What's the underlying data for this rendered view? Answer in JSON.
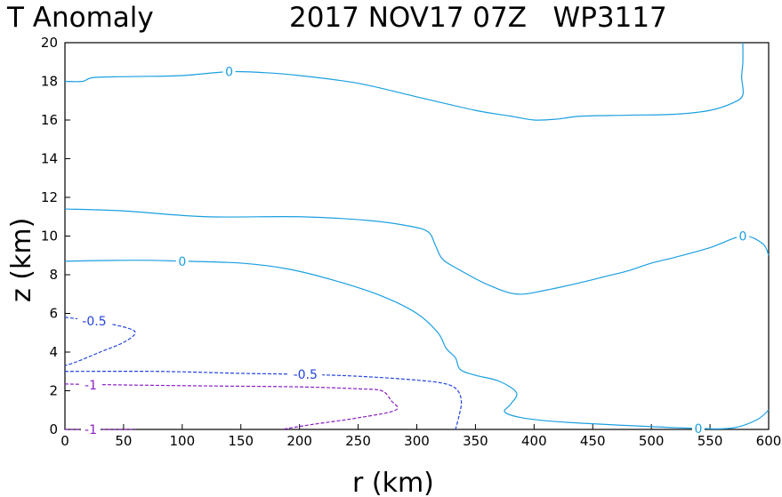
{
  "chart_data": {
    "type": "contour",
    "title_left": "T Anomaly",
    "title_right": "2017 NOV17 07Z   WP3117",
    "xlabel": "r (km)",
    "ylabel": "z (km)",
    "xlim": [
      0,
      600
    ],
    "ylim": [
      0,
      20
    ],
    "xticks": [
      "0",
      "50",
      "100",
      "150",
      "200",
      "250",
      "300",
      "350",
      "400",
      "450",
      "500",
      "550",
      "600"
    ],
    "yticks": [
      "0",
      "2",
      "4",
      "6",
      "8",
      "10",
      "12",
      "14",
      "16",
      "18",
      "20"
    ],
    "colors": {
      "zero": "#1a9fe0",
      "neg05": "#2244dd",
      "neg1": "#8b1fc4"
    },
    "contours": [
      {
        "level": "0",
        "name": "contour-0-upper",
        "color": "zero",
        "dash": false,
        "points": [
          [
            0,
            18.0
          ],
          [
            15,
            18.0
          ],
          [
            25,
            18.2
          ],
          [
            60,
            18.25
          ],
          [
            100,
            18.3
          ],
          [
            140,
            18.5
          ],
          [
            170,
            18.45
          ],
          [
            200,
            18.3
          ],
          [
            250,
            17.9
          ],
          [
            300,
            17.2
          ],
          [
            350,
            16.5
          ],
          [
            380,
            16.2
          ],
          [
            400,
            16.0
          ],
          [
            420,
            16.05
          ],
          [
            440,
            16.2
          ],
          [
            480,
            16.25
          ],
          [
            520,
            16.3
          ],
          [
            550,
            16.5
          ],
          [
            570,
            16.9
          ],
          [
            578,
            17.3
          ],
          [
            577,
            18.2
          ],
          [
            578,
            19.0
          ],
          [
            578,
            20.0
          ]
        ]
      },
      {
        "level": "",
        "name": "contour-0-middle",
        "color": "zero",
        "dash": false,
        "points": [
          [
            0,
            11.4
          ],
          [
            50,
            11.3
          ],
          [
            120,
            11.0
          ],
          [
            200,
            11.0
          ],
          [
            260,
            10.8
          ],
          [
            295,
            10.5
          ],
          [
            310,
            10.2
          ],
          [
            316,
            9.5
          ],
          [
            322,
            8.8
          ],
          [
            335,
            8.3
          ],
          [
            360,
            7.5
          ],
          [
            385,
            7.0
          ],
          [
            410,
            7.2
          ],
          [
            440,
            7.6
          ],
          [
            460,
            7.9
          ],
          [
            480,
            8.2
          ],
          [
            500,
            8.6
          ],
          [
            520,
            8.9
          ],
          [
            550,
            9.4
          ],
          [
            578,
            10.0
          ],
          [
            595,
            9.6
          ],
          [
            600,
            9.0
          ]
        ]
      },
      {
        "level": "0",
        "name": "contour-0-lower",
        "color": "zero",
        "dash": false,
        "points": [
          [
            0,
            8.7
          ],
          [
            60,
            8.75
          ],
          [
            100,
            8.7
          ],
          [
            150,
            8.6
          ],
          [
            190,
            8.3
          ],
          [
            230,
            7.7
          ],
          [
            270,
            6.9
          ],
          [
            300,
            6.0
          ],
          [
            318,
            5.0
          ],
          [
            325,
            4.2
          ],
          [
            333,
            3.7
          ],
          [
            337,
            3.1
          ],
          [
            350,
            2.8
          ],
          [
            370,
            2.5
          ],
          [
            385,
            1.9
          ],
          [
            380,
            1.3
          ],
          [
            375,
            0.9
          ],
          [
            390,
            0.6
          ],
          [
            420,
            0.4
          ],
          [
            480,
            0.2
          ],
          [
            540,
            0.05
          ],
          [
            570,
            0.08
          ],
          [
            590,
            0.5
          ],
          [
            600,
            1.0
          ]
        ]
      },
      {
        "level": "-0.5",
        "name": "contour-neg05-upper",
        "color": "neg05",
        "dash": true,
        "points": [
          [
            0,
            5.8
          ],
          [
            25,
            5.6
          ],
          [
            50,
            5.3
          ],
          [
            60,
            5.0
          ],
          [
            50,
            4.5
          ],
          [
            30,
            4.0
          ],
          [
            10,
            3.5
          ],
          [
            0,
            3.3
          ]
        ]
      },
      {
        "level": "-0.5",
        "name": "contour-neg05-lower",
        "color": "neg05",
        "dash": true,
        "points": [
          [
            0,
            3.0
          ],
          [
            80,
            3.0
          ],
          [
            150,
            2.9
          ],
          [
            200,
            2.85
          ],
          [
            250,
            2.75
          ],
          [
            300,
            2.55
          ],
          [
            325,
            2.35
          ],
          [
            335,
            2.0
          ],
          [
            338,
            1.4
          ],
          [
            336,
            0.7
          ],
          [
            333,
            0.0
          ]
        ]
      },
      {
        "level": "-1",
        "name": "contour-neg1-upper",
        "color": "neg1",
        "dash": true,
        "points": [
          [
            0,
            2.35
          ],
          [
            50,
            2.3
          ],
          [
            120,
            2.25
          ],
          [
            200,
            2.2
          ],
          [
            250,
            2.1
          ],
          [
            270,
            2.0
          ],
          [
            278,
            1.5
          ],
          [
            282,
            1.0
          ],
          [
            250,
            0.6
          ],
          [
            210,
            0.25
          ],
          [
            185,
            0.0
          ]
        ]
      },
      {
        "level": "-1",
        "name": "contour-neg1-lower",
        "color": "neg1",
        "dash": true,
        "points": [
          [
            0,
            0.0
          ],
          [
            60,
            0.0
          ]
        ]
      }
    ],
    "labels": [
      {
        "text": "0",
        "x": 140,
        "y": 18.5,
        "color": "zero",
        "name": "contour-label-0-upper"
      },
      {
        "text": "0",
        "x": 100,
        "y": 8.7,
        "color": "zero",
        "name": "contour-label-0-lower"
      },
      {
        "text": "0",
        "x": 578,
        "y": 10.0,
        "color": "zero",
        "name": "contour-label-0-right"
      },
      {
        "text": "0",
        "x": 540,
        "y": 0.05,
        "color": "zero",
        "name": "contour-label-0-bottom"
      },
      {
        "text": "-0.5",
        "x": 25,
        "y": 5.6,
        "color": "neg05",
        "name": "contour-label-neg05-upper"
      },
      {
        "text": "-0.5",
        "x": 205,
        "y": 2.85,
        "color": "neg05",
        "name": "contour-label-neg05-lower"
      },
      {
        "text": "-1",
        "x": 22,
        "y": 2.3,
        "color": "neg1",
        "name": "contour-label-neg1-upper"
      },
      {
        "text": "-1",
        "x": 22,
        "y": 0.0,
        "color": "neg1",
        "name": "contour-label-neg1-lower"
      }
    ]
  }
}
